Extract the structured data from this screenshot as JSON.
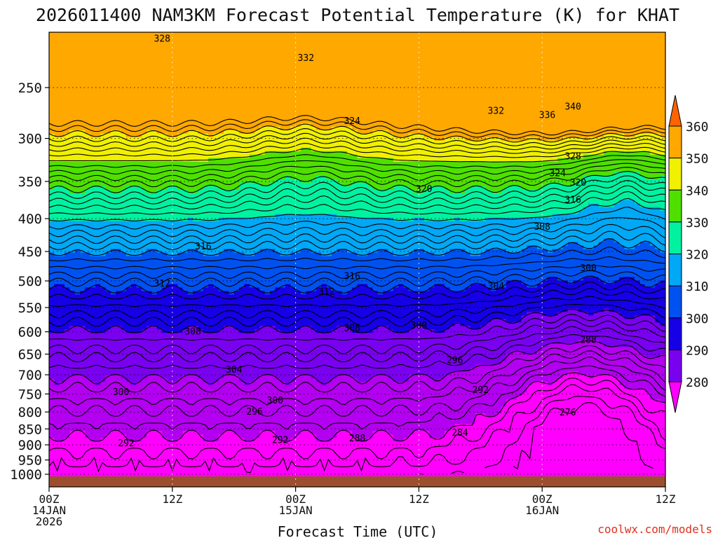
{
  "header": {
    "title": "2026011400 NAM3KM Forecast Potential Temperature (K) for KHAT"
  },
  "footer": {
    "credit": "coolwx.com/models"
  },
  "colors": {
    "credit": "#e0301e",
    "ground": "#9c4f2c",
    "contour": "#000000"
  },
  "chart_data": {
    "type": "heatmap",
    "title": "2026011400 NAM3KM Forecast Potential Temperature (K) for KHAT",
    "xlabel": "Forecast Time (UTC)",
    "ylabel": "",
    "x_unit": "forecast hour",
    "xlim": [
      0,
      60
    ],
    "y_unit": "hPa",
    "ylim": [
      1000,
      200
    ],
    "yscale": "log",
    "grid": true,
    "x_ticks": [
      {
        "x": 0,
        "lines": [
          "00Z",
          "14JAN",
          "2026"
        ]
      },
      {
        "x": 12,
        "lines": [
          "12Z"
        ]
      },
      {
        "x": 24,
        "lines": [
          "00Z",
          "15JAN"
        ]
      },
      {
        "x": 36,
        "lines": [
          "12Z"
        ]
      },
      {
        "x": 48,
        "lines": [
          "00Z",
          "16JAN"
        ]
      },
      {
        "x": 60,
        "lines": [
          "12Z"
        ]
      }
    ],
    "y_ticks": [
      250,
      300,
      350,
      400,
      450,
      500,
      550,
      600,
      650,
      700,
      750,
      800,
      850,
      900,
      950,
      1000
    ],
    "colorbar": {
      "levels": [
        280,
        290,
        300,
        310,
        320,
        330,
        340,
        350,
        360
      ],
      "colors": [
        "#ff00ff",
        "#b300f0",
        "#7a00f0",
        "#1600e6",
        "#0052f0",
        "#00a8f5",
        "#00f2a0",
        "#4fe000",
        "#f0f000",
        "#ffa800",
        "#ff6400"
      ],
      "extend": "both"
    },
    "contour_interval": 2,
    "contour_labels": [
      {
        "x": 11.0,
        "p": 210,
        "v": 328
      },
      {
        "x": 25.0,
        "p": 225,
        "v": 332
      },
      {
        "x": 29.5,
        "p": 282,
        "v": 324
      },
      {
        "x": 43.5,
        "p": 272,
        "v": 332
      },
      {
        "x": 48.5,
        "p": 276,
        "v": 336
      },
      {
        "x": 51.0,
        "p": 268,
        "v": 340
      },
      {
        "x": 51.0,
        "p": 320,
        "v": 328
      },
      {
        "x": 49.5,
        "p": 340,
        "v": 324
      },
      {
        "x": 51.5,
        "p": 352,
        "v": 320
      },
      {
        "x": 51.0,
        "p": 374,
        "v": 316
      },
      {
        "x": 36.5,
        "p": 360,
        "v": 320
      },
      {
        "x": 48.0,
        "p": 412,
        "v": 308
      },
      {
        "x": 15.0,
        "p": 442,
        "v": 316
      },
      {
        "x": 29.5,
        "p": 492,
        "v": 316
      },
      {
        "x": 43.5,
        "p": 510,
        "v": 304
      },
      {
        "x": 52.5,
        "p": 478,
        "v": 300
      },
      {
        "x": 11.0,
        "p": 505,
        "v": 312
      },
      {
        "x": 27.0,
        "p": 520,
        "v": 312
      },
      {
        "x": 14.0,
        "p": 600,
        "v": 308
      },
      {
        "x": 29.5,
        "p": 592,
        "v": 308
      },
      {
        "x": 36.0,
        "p": 587,
        "v": 300
      },
      {
        "x": 52.5,
        "p": 618,
        "v": 288
      },
      {
        "x": 18.0,
        "p": 688,
        "v": 304
      },
      {
        "x": 39.5,
        "p": 665,
        "v": 296
      },
      {
        "x": 7.0,
        "p": 745,
        "v": 300
      },
      {
        "x": 22.0,
        "p": 768,
        "v": 300
      },
      {
        "x": 20.0,
        "p": 800,
        "v": 296
      },
      {
        "x": 42.0,
        "p": 740,
        "v": 292
      },
      {
        "x": 7.5,
        "p": 895,
        "v": 292
      },
      {
        "x": 22.5,
        "p": 885,
        "v": 292
      },
      {
        "x": 30.0,
        "p": 880,
        "v": 288
      },
      {
        "x": 40.0,
        "p": 862,
        "v": 284
      },
      {
        "x": 50.5,
        "p": 802,
        "v": 276
      }
    ]
  }
}
